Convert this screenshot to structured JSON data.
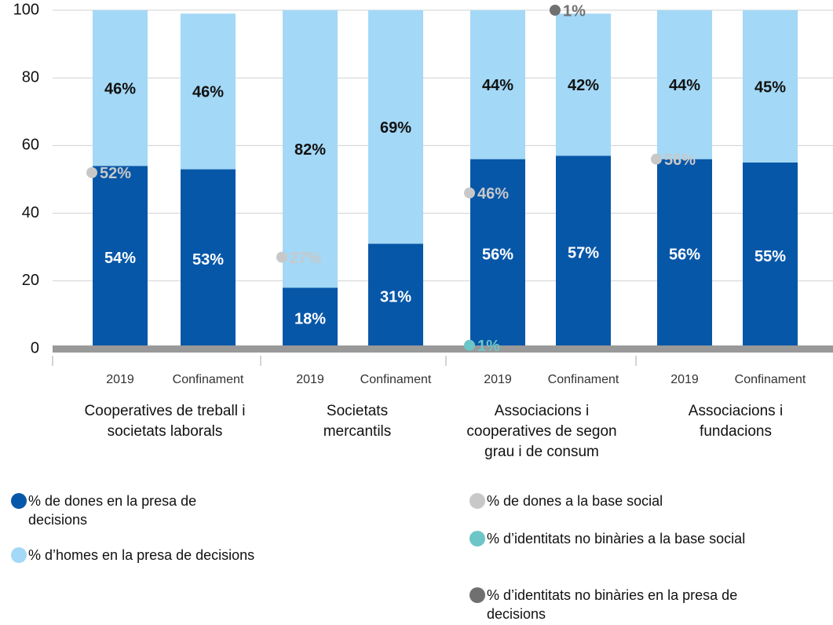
{
  "chart_data": {
    "type": "stacked_bar",
    "categories": [
      "2019",
      "Confinament",
      "2019",
      "Confinament",
      "2019",
      "Confinament",
      "2019",
      "Confinament"
    ],
    "groups": [
      "Cooperatives de treball i societats laborals",
      "Societats mercantils",
      "Associacions i cooperatives de segon grau i de consum",
      "Associacions i fundacions"
    ],
    "series": [
      {
        "name": "% de dones en la presa de decisions",
        "color": "#0757a8",
        "label_color": "#ffffff",
        "values": [
          54,
          53,
          18,
          31,
          56,
          57,
          56,
          55
        ],
        "value_labels": [
          "54%",
          "53%",
          "18%",
          "31%",
          "56%",
          "57%",
          "56%",
          "55%"
        ]
      },
      {
        "name": "% d’homes en la presa de decisions",
        "color": "#a3d8f6",
        "label_color": "#111111",
        "values": [
          46,
          46,
          82,
          69,
          44,
          42,
          44,
          45
        ],
        "value_labels": [
          "46%",
          "46%",
          "82%",
          "69%",
          "44%",
          "42%",
          "44%",
          "45%"
        ]
      }
    ],
    "markers": [
      {
        "name": "% de dones a la base social",
        "color": "#c8c8c8",
        "stacked": false,
        "values": [
          52,
          null,
          27,
          null,
          46,
          null,
          56,
          null
        ],
        "value_labels": [
          "52%",
          null,
          "27%",
          null,
          "46%",
          null,
          "56%",
          null
        ]
      },
      {
        "name": "% d’identitats no binàries a la base social",
        "color": "#6cc6c8",
        "stacked": false,
        "values": [
          null,
          null,
          null,
          null,
          1,
          null,
          null,
          null
        ],
        "value_labels": [
          null,
          null,
          null,
          null,
          "1%",
          null,
          null,
          null
        ]
      },
      {
        "name": "% d’identitats no binàries en la presa de decisions",
        "color": "#707070",
        "stacked": true,
        "values": [
          null,
          null,
          null,
          null,
          null,
          1,
          null,
          null
        ],
        "value_labels": [
          null,
          null,
          null,
          null,
          null,
          "1%",
          null,
          null
        ]
      }
    ],
    "ylim": [
      0,
      100
    ],
    "yticks": [
      0,
      20,
      40,
      60,
      80,
      100
    ],
    "grid": true
  }
}
